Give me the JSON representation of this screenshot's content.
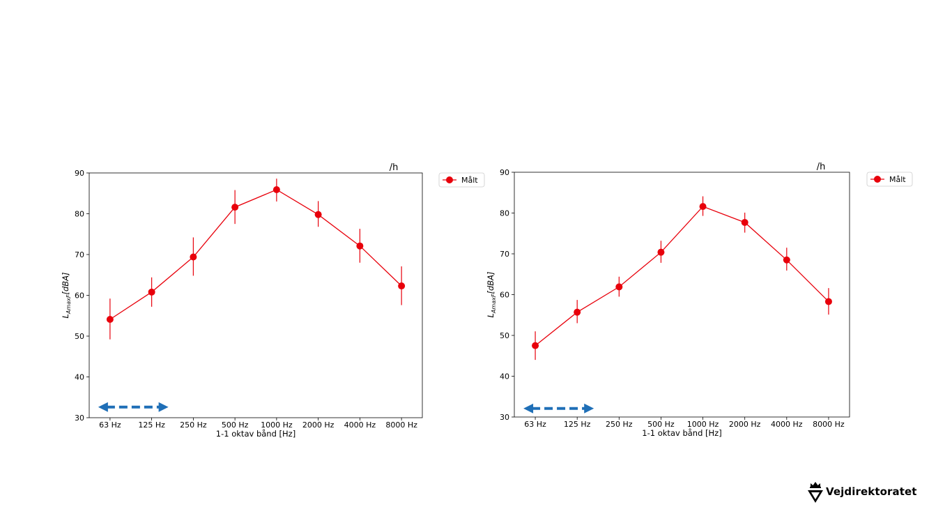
{
  "chart_data": [
    {
      "type": "line",
      "categories": [
        "63 Hz",
        "125 Hz",
        "250 Hz",
        "500 Hz",
        "1000 Hz",
        "2000 Hz",
        "4000 Hz",
        "8000 Hz"
      ],
      "series": [
        {
          "name": "Målt",
          "color": "#e8000b",
          "values": [
            54.1,
            60.8,
            69.4,
            81.6,
            85.9,
            79.8,
            72.1,
            62.3
          ],
          "err_low": [
            49.2,
            57.2,
            64.8,
            77.5,
            83.0,
            76.8,
            68.0,
            57.6
          ],
          "err_high": [
            59.2,
            64.4,
            74.2,
            85.8,
            88.6,
            83.1,
            76.3,
            67.1
          ]
        }
      ],
      "xlabel": "1-1 oktav bånd [Hz]",
      "ylabel_main": "L",
      "ylabel_sub": "AmaxF",
      "ylabel_unit": "[dBA]",
      "ylim": [
        30,
        90
      ],
      "yticks": [
        "30",
        "40",
        "50",
        "60",
        "70",
        "80",
        "90"
      ],
      "title_fragment": "/h",
      "legend_position": "outside-top-right",
      "grid": false,
      "annotation": {
        "type": "double-arrow-dashed",
        "color": "#1f6fb7",
        "from_category": 0,
        "to_category": 1
      }
    },
    {
      "type": "line",
      "categories": [
        "63 Hz",
        "125 Hz",
        "250 Hz",
        "500 Hz",
        "1000 Hz",
        "2000 Hz",
        "4000 Hz",
        "8000 Hz"
      ],
      "series": [
        {
          "name": "Målt",
          "color": "#e8000b",
          "values": [
            47.5,
            55.7,
            61.9,
            70.4,
            81.6,
            77.7,
            68.5,
            58.3
          ],
          "err_low": [
            44.0,
            53.0,
            59.5,
            67.8,
            79.3,
            75.2,
            65.9,
            55.1
          ],
          "err_high": [
            51.0,
            58.7,
            64.4,
            73.2,
            84.1,
            80.1,
            71.5,
            61.6
          ]
        }
      ],
      "xlabel": "1-1 oktav bånd [Hz]",
      "ylabel_main": "L",
      "ylabel_sub": "AmaxF",
      "ylabel_unit": "[dBA]",
      "ylim": [
        30,
        90
      ],
      "yticks": [
        "30",
        "40",
        "50",
        "60",
        "70",
        "80",
        "90"
      ],
      "title_fragment": "/h",
      "legend_position": "outside-top-right",
      "grid": false,
      "annotation": {
        "type": "double-arrow-dashed",
        "color": "#1f6fb7",
        "from_category": 0,
        "to_category": 1
      }
    }
  ],
  "logo": {
    "text": "Vejdirektoratet",
    "icon": "crown-shield-icon"
  }
}
